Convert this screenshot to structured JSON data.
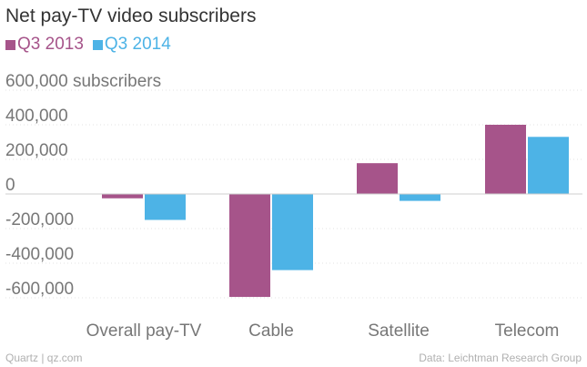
{
  "chart_data": {
    "type": "bar",
    "title": "Net pay-TV video subscribers",
    "ylabel": "subscribers",
    "categories": [
      "Overall pay-TV",
      "Cable",
      "Satellite",
      "Telecom"
    ],
    "series": [
      {
        "name": "Q3 2013",
        "color": "#a6548a",
        "values": [
          -25000,
          -595000,
          178000,
          400000
        ]
      },
      {
        "name": "Q3 2014",
        "color": "#4db3e6",
        "values": [
          -150000,
          -440000,
          -40000,
          330000
        ]
      }
    ],
    "yticks": [
      600000,
      400000,
      200000,
      0,
      -200000,
      -400000,
      -600000
    ],
    "ytick_labels": [
      "600,000 subscribers",
      "400,000",
      "200,000",
      "0",
      "-200,000",
      "-400,000",
      "-600,000"
    ],
    "ylim": [
      -600000,
      600000
    ],
    "grid": true,
    "legend": "top-left"
  },
  "footer": {
    "source_left": "Quartz | qz.com",
    "source_right": "Data: Leichtman Research Group"
  }
}
